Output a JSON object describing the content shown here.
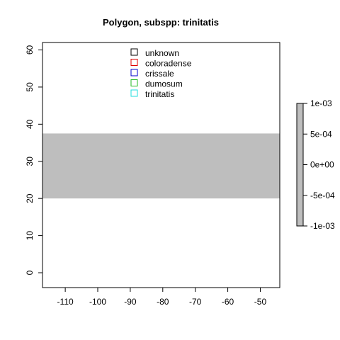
{
  "title": "Polygon, subspp: trinitatis",
  "map": {
    "xlim": [
      -117,
      -44
    ],
    "ylim": [
      -4,
      62
    ],
    "x_ticks": [
      "-110",
      "-100",
      "-90",
      "-80",
      "-70",
      "-60",
      "-50"
    ],
    "x_tick_values": [
      -110,
      -100,
      -90,
      -80,
      -70,
      -60,
      -50
    ],
    "y_ticks": [
      "0",
      "10",
      "20",
      "30",
      "40",
      "50",
      "60"
    ],
    "y_tick_values": [
      0,
      10,
      20,
      30,
      40,
      50,
      60
    ],
    "band": {
      "ymin": 20,
      "ymax": 37.5,
      "color": "#bebebe"
    }
  },
  "legend": {
    "items": [
      {
        "label": "unknown",
        "color": "#000000"
      },
      {
        "label": "coloradense",
        "color": "#df0000"
      },
      {
        "label": "crissale",
        "color": "#0000cc"
      },
      {
        "label": "dumosum",
        "color": "#22bb22"
      },
      {
        "label": "trinitatis",
        "color": "#22dddd"
      }
    ]
  },
  "colorbar": {
    "range": [
      -0.001,
      0.001
    ],
    "tick_values": [
      0.001,
      0.0005,
      0,
      -0.0005,
      -0.001
    ],
    "ticks": [
      "1e-03",
      "5e-04",
      "0e+00",
      "-5e-04",
      "-1e-03"
    ],
    "fill": "#bebebe"
  }
}
